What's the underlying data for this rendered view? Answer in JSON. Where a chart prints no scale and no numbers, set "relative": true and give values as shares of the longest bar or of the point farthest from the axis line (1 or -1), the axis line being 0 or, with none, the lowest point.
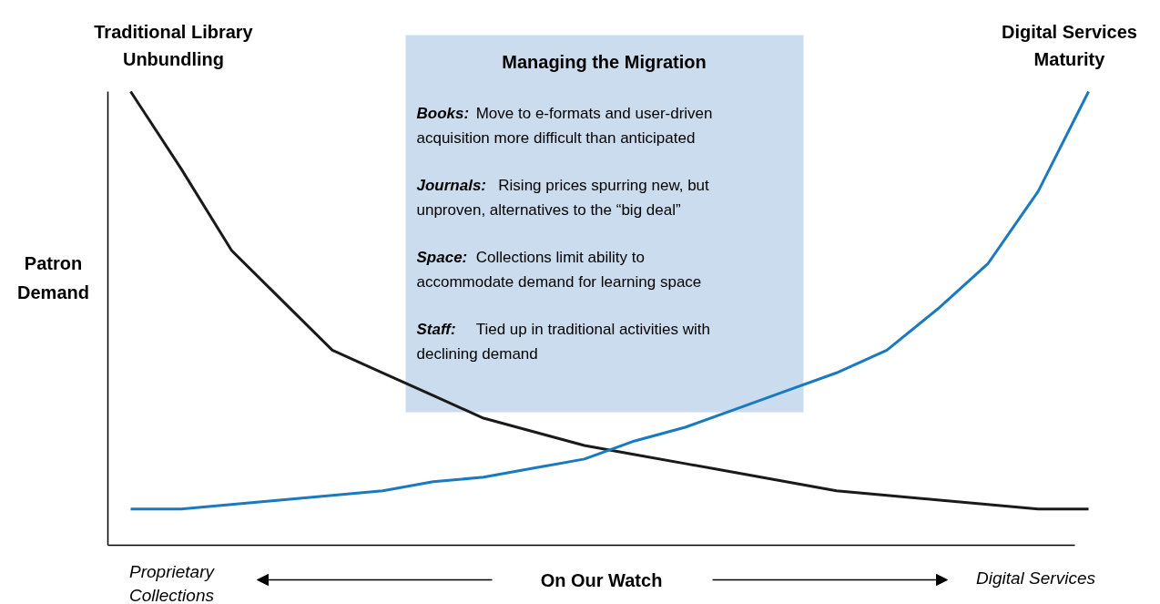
{
  "chart_data": {
    "type": "line",
    "relative": true,
    "xlabel": "On Our Watch",
    "ylabel": "Patron Demand",
    "legend": false,
    "grid": false,
    "categories": [
      null,
      null,
      null,
      null,
      null,
      null,
      null,
      null,
      null,
      null,
      null,
      null,
      null,
      null,
      null,
      null,
      null,
      null,
      null,
      null
    ],
    "series": [
      {
        "name": "Traditional Library Unbundling",
        "color": "#1a1a1a",
        "values": [
          1.0,
          0.83,
          0.65,
          0.54,
          0.43,
          0.38,
          0.33,
          0.28,
          0.25,
          0.22,
          0.2,
          0.18,
          0.16,
          0.14,
          0.12,
          0.11,
          0.1,
          0.09,
          0.08,
          0.08
        ]
      },
      {
        "name": "Digital Services Maturity",
        "color": "#1a7abf",
        "values": [
          0.08,
          0.08,
          0.09,
          0.1,
          0.11,
          0.12,
          0.14,
          0.15,
          0.17,
          0.19,
          0.23,
          0.26,
          0.3,
          0.34,
          0.38,
          0.43,
          0.52,
          0.62,
          0.78,
          1.0
        ]
      }
    ],
    "annotations": [
      "Proprietary Collections",
      "Digital Services",
      "Managing the Migration",
      "Books: Move to e-formats and user-driven acquisition more difficult than anticipated",
      "Journals: Rising prices spurring new, but unproven, alternatives to the “big deal”",
      "Space: Collections limit ability to accommodate demand for learning space",
      "Staff: Tied up in traditional activities with declining demand"
    ]
  }
}
